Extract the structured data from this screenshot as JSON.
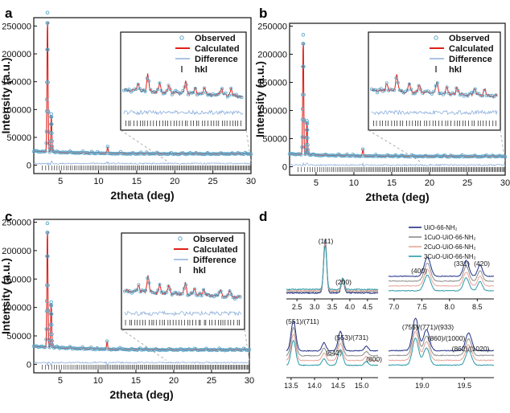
{
  "figure": {
    "panel_labels": [
      "a",
      "b",
      "c",
      "d"
    ]
  },
  "colors": {
    "observed": "#5aa6c8",
    "calculated": "#e0201b",
    "difference": "#8fb0dc",
    "hkl": "#111111",
    "series_d": [
      "#1f2f86",
      "#8c8c8c",
      "#e6a59a",
      "#2a9aa8"
    ]
  },
  "chart_data": [
    {
      "panel": "a",
      "type": "line",
      "xlabel": "2theta (deg)",
      "ylabel": "Intensity (a.u.)",
      "xlim": [
        1.5,
        30
      ],
      "ylim": [
        -15000,
        265000
      ],
      "xticks": [
        5,
        10,
        15,
        20,
        25,
        30
      ],
      "yticks": [
        0,
        50000,
        100000,
        150000,
        200000,
        250000
      ],
      "legend": [
        "Observed",
        "Calculated",
        "Difference",
        "hkl"
      ],
      "legend_position": "inset-top",
      "inset": true,
      "peaks": [
        [
          3.3,
          250000
        ],
        [
          3.8,
          68000
        ],
        [
          11.2,
          10000
        ]
      ],
      "background": 20000,
      "difference_offset": 3000
    },
    {
      "panel": "b",
      "type": "line",
      "xlabel": "2theta (deg)",
      "ylabel": "Intensity (a.u.)",
      "xlim": [
        1.5,
        30
      ],
      "ylim": [
        -15000,
        255000
      ],
      "xticks": [
        5,
        10,
        15,
        20,
        25,
        30
      ],
      "yticks": [
        0,
        50000,
        100000,
        150000,
        200000,
        250000
      ],
      "legend": [
        "Observed",
        "Calculated",
        "Difference",
        "hkl"
      ],
      "legend_position": "inset-top",
      "inset": true,
      "peaks": [
        [
          3.3,
          213000
        ],
        [
          3.8,
          60000
        ],
        [
          11.2,
          10000
        ]
      ],
      "background": 18000,
      "difference_offset": 3000
    },
    {
      "panel": "c",
      "type": "line",
      "xlabel": "2theta (deg)",
      "ylabel": "Intensity (a.u.)",
      "xlim": [
        1.5,
        30
      ],
      "ylim": [
        -15000,
        255000
      ],
      "xticks": [
        5,
        10,
        15,
        20,
        25,
        30
      ],
      "yticks": [
        0,
        50000,
        100000,
        150000,
        200000,
        250000
      ],
      "legend": [
        "Observed",
        "Calculated",
        "Difference",
        "hkl"
      ],
      "legend_position": "inset-top",
      "inset": true,
      "peaks": [
        [
          3.3,
          218000
        ],
        [
          3.8,
          80000
        ],
        [
          11.2,
          12000
        ]
      ],
      "background": 25000,
      "difference_offset": 3000
    },
    {
      "panel": "d",
      "type": "line",
      "legend": [
        "UiO-66-NH₂",
        "1CuO-UiO-66-NH₂",
        "2CuO-UiO-66-NH₂",
        "3CuO-UiO-66-NH₂"
      ],
      "legend_position": "top-right",
      "subplots": [
        {
          "xlim": [
            2.2,
            4.8
          ],
          "xticks": [
            2.5,
            3.0,
            3.5,
            4.0,
            4.5
          ],
          "xticklabels": [
            "2.5",
            "3.0",
            "3.5",
            "4.0",
            "4.5"
          ],
          "peaks": [
            [
              3.3,
              1.0,
              0.06
            ],
            [
              3.8,
              0.25,
              0.06
            ]
          ],
          "annotations": [
            {
              "text": "(111)",
              "x": 3.3
            },
            {
              "text": "(200)",
              "x": 3.8
            }
          ]
        },
        {
          "xlim": [
            6.9,
            8.8
          ],
          "xticks": [
            7.0,
            7.5,
            8.0,
            8.5
          ],
          "xticklabels": [
            "7.0",
            "7.5",
            "8.0",
            "8.5"
          ],
          "peaks": [
            [
              7.6,
              0.55,
              0.08
            ],
            [
              8.3,
              0.45,
              0.07
            ],
            [
              8.55,
              0.32,
              0.06
            ]
          ],
          "annotations": [
            {
              "text": "(400)",
              "x": 7.6
            },
            {
              "text": "(331)",
              "x": 8.3
            },
            {
              "text": "(420)",
              "x": 8.55
            }
          ]
        },
        {
          "xlim": [
            13.4,
            15.35
          ],
          "xticks": [
            13.5,
            14.0,
            14.5,
            15.0
          ],
          "xticklabels": [
            "13.5",
            "14.0",
            "14.5",
            "15.0"
          ],
          "peaks": [
            [
              13.55,
              0.8,
              0.07
            ],
            [
              14.2,
              0.22,
              0.06
            ],
            [
              14.55,
              0.52,
              0.07
            ],
            [
              15.1,
              0.12,
              0.06
            ]
          ],
          "annotations": [
            {
              "text": "(551)/(711)",
              "x": 13.55
            },
            {
              "text": "(642)",
              "x": 14.2
            },
            {
              "text": "(553)/(731)",
              "x": 14.55
            },
            {
              "text": "(800)",
              "x": 15.1
            }
          ]
        },
        {
          "xlim": [
            18.6,
            19.85
          ],
          "xticks": [
            19.0,
            19.5
          ],
          "xticklabels": [
            "19.0",
            "19.5"
          ],
          "peaks": [
            [
              18.92,
              0.78,
              0.05
            ],
            [
              19.05,
              0.5,
              0.05
            ],
            [
              19.55,
              0.42,
              0.05
            ]
          ],
          "annotations": [
            {
              "text": "(755)/(771)/(933)",
              "x": 18.9
            },
            {
              "text": "(860)/(1000)",
              "x": 19.15
            },
            {
              "text": "(862)/(1020)",
              "x": 19.58
            }
          ]
        }
      ]
    }
  ]
}
